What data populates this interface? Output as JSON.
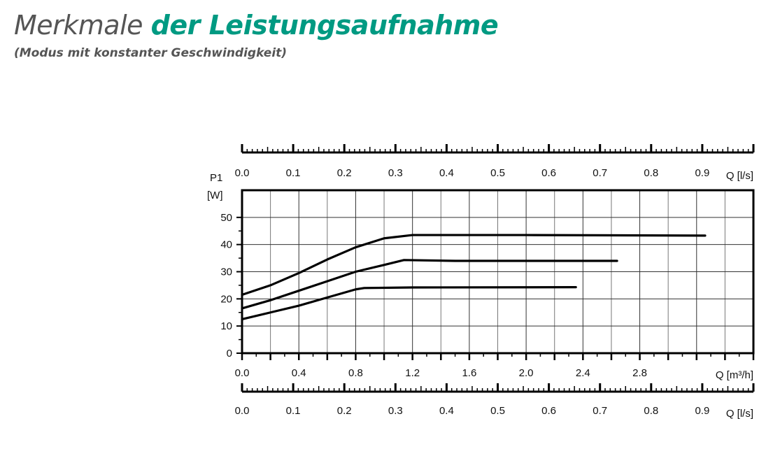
{
  "header": {
    "title_light": "Merkmale",
    "title_bold": "der Leistungsaufnahme",
    "subtitle": "(Modus mit konstanter Geschwindigkeit)",
    "accent_color": "#009a82"
  },
  "chart_data": {
    "type": "line",
    "ylabel_line1": "P1",
    "ylabel_line2": "[W]",
    "xlabel": "Q [m³/h]",
    "x2label": "Q [l/s]",
    "xlim": [
      0,
      3.6
    ],
    "ylim": [
      0,
      60
    ],
    "x_ticks": [
      "0.0",
      "0.4",
      "0.8",
      "1.2",
      "1.6",
      "2.0",
      "2.4",
      "2.8"
    ],
    "y_ticks": [
      "0",
      "10",
      "20",
      "30",
      "40",
      "50"
    ],
    "ls_ticks": [
      "0.0",
      "0.1",
      "0.2",
      "0.3",
      "0.4",
      "0.5",
      "0.6",
      "0.7",
      "0.8",
      "0.9"
    ],
    "grid": true,
    "series": [
      {
        "x": [
          0,
          0.2,
          0.4,
          0.6,
          0.8,
          1.0,
          1.2,
          2.0,
          3.26
        ],
        "y": [
          21.5,
          25,
          29.5,
          34.5,
          39,
          42.3,
          43.5,
          43.5,
          43.3
        ]
      },
      {
        "x": [
          0,
          0.2,
          0.4,
          0.6,
          0.8,
          1.0,
          1.14,
          1.5,
          2.64
        ],
        "y": [
          16.5,
          19.5,
          23,
          26.5,
          30,
          32.5,
          34.3,
          34,
          34
        ]
      },
      {
        "x": [
          0,
          0.2,
          0.4,
          0.6,
          0.8,
          0.86,
          1.2,
          2.35
        ],
        "y": [
          12.5,
          15,
          17.5,
          20.5,
          23.5,
          24,
          24.2,
          24.3
        ]
      }
    ]
  }
}
